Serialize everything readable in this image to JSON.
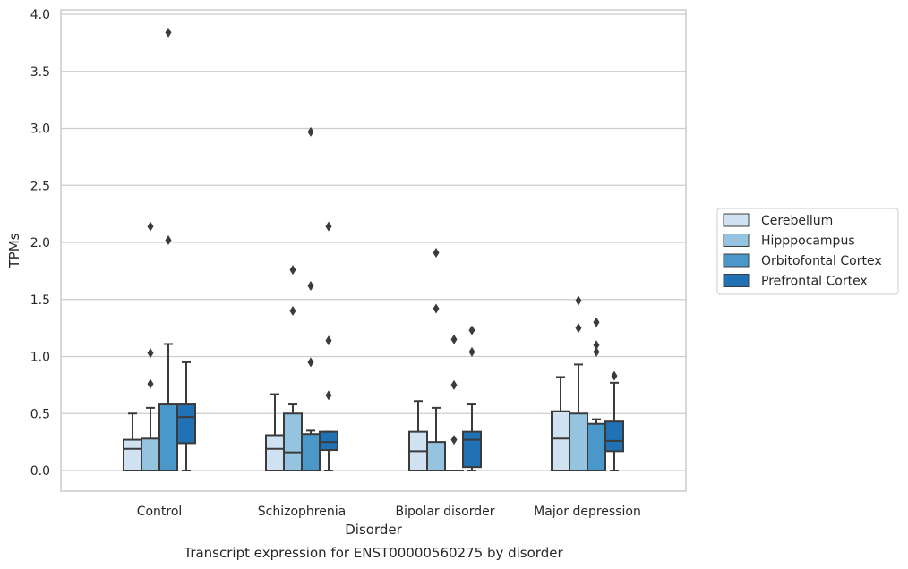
{
  "chart_data": {
    "type": "box",
    "caption": "Transcript expression for ENST00000560275 by disorder",
    "xlabel": "Disorder",
    "ylabel": "TPMs",
    "ylim": [
      -0.18,
      4.05
    ],
    "yticks": [
      "0.0",
      "0.5",
      "1.0",
      "1.5",
      "2.0",
      "2.5",
      "3.0",
      "3.5",
      "4.0"
    ],
    "grid": "horizontal",
    "legend_position": "right",
    "categories": [
      "Control",
      "Schizophrenia",
      "Bipolar disorder",
      "Major depression"
    ],
    "series": [
      {
        "name": "Cerebellum",
        "color": "#d0e1f2",
        "boxes": [
          {
            "whisker_low": 0.0,
            "q1": 0.0,
            "median": 0.19,
            "q3": 0.27,
            "whisker_high": 0.5,
            "outliers": []
          },
          {
            "whisker_low": 0.0,
            "q1": 0.0,
            "median": 0.19,
            "q3": 0.31,
            "whisker_high": 0.67,
            "outliers": []
          },
          {
            "whisker_low": 0.0,
            "q1": 0.0,
            "median": 0.17,
            "q3": 0.34,
            "whisker_high": 0.61,
            "outliers": []
          },
          {
            "whisker_low": 0.0,
            "q1": 0.0,
            "median": 0.28,
            "q3": 0.52,
            "whisker_high": 0.82,
            "outliers": []
          }
        ]
      },
      {
        "name": "Hipppocampus",
        "color": "#94c4df",
        "boxes": [
          {
            "whisker_low": 0.0,
            "q1": 0.0,
            "median": 0.0,
            "q3": 0.28,
            "whisker_high": 0.55,
            "outliers": [
              0.76,
              1.03,
              2.14
            ]
          },
          {
            "whisker_low": 0.0,
            "q1": 0.0,
            "median": 0.16,
            "q3": 0.5,
            "whisker_high": 0.58,
            "outliers": [
              1.4,
              1.76
            ]
          },
          {
            "whisker_low": 0.0,
            "q1": 0.0,
            "median": 0.0,
            "q3": 0.25,
            "whisker_high": 0.55,
            "outliers": [
              1.42,
              1.91
            ]
          },
          {
            "whisker_low": 0.0,
            "q1": 0.0,
            "median": 0.0,
            "q3": 0.5,
            "whisker_high": 0.93,
            "outliers": [
              1.25,
              1.49
            ]
          }
        ]
      },
      {
        "name": "Orbitofontal Cortex",
        "color": "#4a98c9",
        "boxes": [
          {
            "whisker_low": 0.0,
            "q1": 0.0,
            "median": 0.0,
            "q3": 0.58,
            "whisker_high": 1.11,
            "outliers": [
              2.02,
              3.84
            ]
          },
          {
            "whisker_low": 0.0,
            "q1": 0.0,
            "median": 0.0,
            "q3": 0.32,
            "whisker_high": 0.35,
            "outliers": [
              0.95,
              1.62,
              2.97
            ]
          },
          {
            "whisker_low": 0.0,
            "q1": 0.0,
            "median": 0.0,
            "q3": 0.0,
            "whisker_high": 0.0,
            "outliers": [
              0.27,
              0.75,
              1.15
            ]
          },
          {
            "whisker_low": 0.0,
            "q1": 0.0,
            "median": 0.0,
            "q3": 0.41,
            "whisker_high": 0.45,
            "outliers": [
              1.04,
              1.1,
              1.3
            ]
          }
        ]
      },
      {
        "name": "Prefrontal Cortex",
        "color": "#2171b5",
        "boxes": [
          {
            "whisker_low": 0.0,
            "q1": 0.24,
            "median": 0.47,
            "q3": 0.58,
            "whisker_high": 0.95,
            "outliers": []
          },
          {
            "whisker_low": 0.0,
            "q1": 0.18,
            "median": 0.25,
            "q3": 0.34,
            "whisker_high": 0.34,
            "outliers": [
              0.66,
              1.14,
              2.14
            ]
          },
          {
            "whisker_low": 0.0,
            "q1": 0.03,
            "median": 0.27,
            "q3": 0.34,
            "whisker_high": 0.58,
            "outliers": [
              1.04,
              1.23
            ]
          },
          {
            "whisker_low": 0.0,
            "q1": 0.17,
            "median": 0.26,
            "q3": 0.43,
            "whisker_high": 0.77,
            "outliers": [
              0.83
            ]
          }
        ]
      }
    ]
  }
}
